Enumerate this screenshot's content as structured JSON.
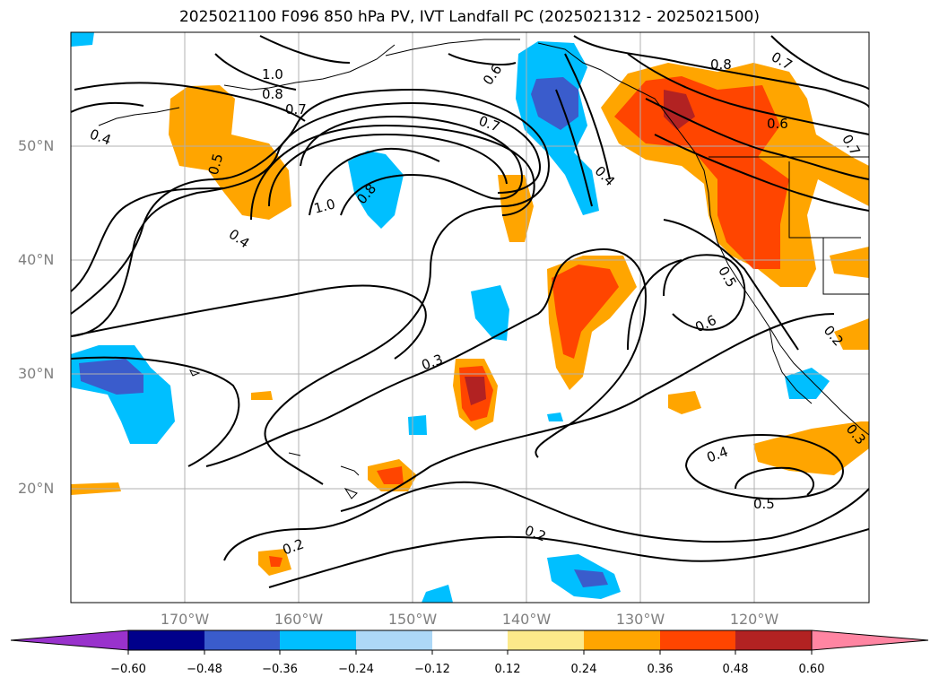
{
  "title": "2025021100 F096 850 hPa PV, IVT Landfall PC (2025021312 - 2025021500)",
  "map": {
    "lon_labels": [
      "170°W",
      "160°W",
      "150°W",
      "140°W",
      "130°W",
      "120°W"
    ],
    "lat_labels": [
      "50°N",
      "40°N",
      "30°N",
      "20°N"
    ],
    "contour_labels": [
      "1.0",
      "0.8",
      "0.7",
      "0.6",
      "0.7",
      "0.4",
      "0.5",
      "0.4",
      "1.0",
      "0.8",
      "0.4",
      "0.3",
      "0.6",
      "0.5",
      "0.2",
      "0.2",
      "0.4",
      "0.5",
      "0.8",
      "0.6",
      "0.7",
      "0.7",
      "0.2",
      "0.3"
    ]
  },
  "colorbar": {
    "ticks": [
      "−0.60",
      "−0.48",
      "−0.36",
      "−0.24",
      "−0.12",
      "0.12",
      "0.24",
      "0.36",
      "0.48",
      "0.60"
    ],
    "colors": [
      "#9932cc",
      "#00008b",
      "#3a5ccc",
      "#00bfff",
      "#add8f7",
      "#ffffff",
      "#fce98a",
      "#ffa500",
      "#ff4500",
      "#b22222",
      "#ff85a2"
    ]
  }
}
